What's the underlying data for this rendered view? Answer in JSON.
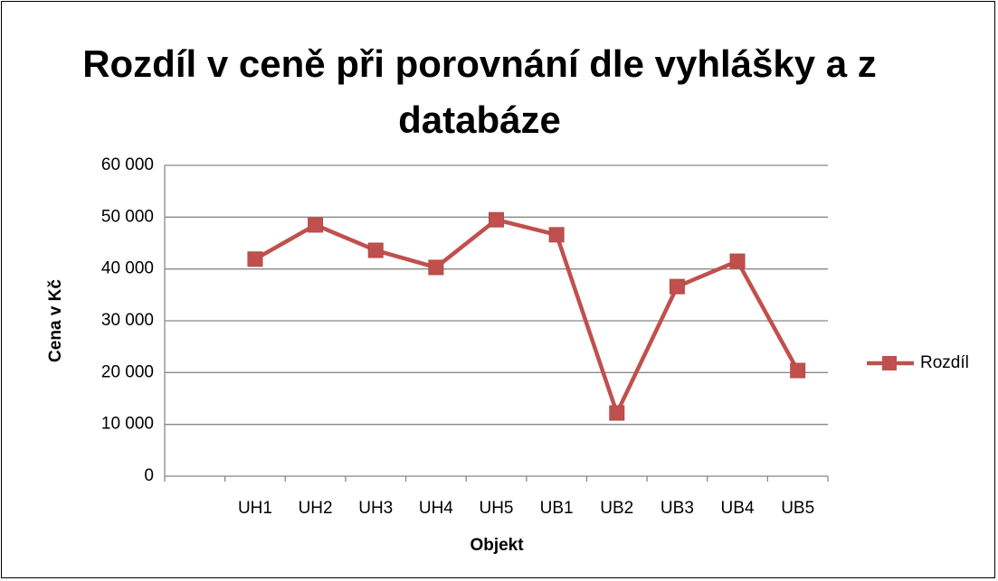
{
  "chart_data": {
    "type": "line",
    "title": "Rozdíl v ceně při porovnání dle vyhlášky a z databáze",
    "x_label": "Objekt",
    "y_label": "Cena v Kč",
    "categories": [
      null,
      "UH1",
      "UH2",
      "UH3",
      "UH4",
      "UH5",
      "UB1",
      "UB2",
      "UB3",
      "UB4",
      "UB5"
    ],
    "series": [
      {
        "name": "Rozdíl",
        "color": "#c0504d",
        "values": [
          null,
          41900,
          48500,
          43600,
          40300,
          49500,
          46600,
          12200,
          36600,
          41500,
          20400
        ]
      }
    ],
    "ylim": [
      0,
      60000
    ],
    "yticks": [
      0,
      {
        "value": 10000,
        "label": "10 000"
      },
      {
        "value": 20000,
        "label": "20 000"
      },
      {
        "value": 30000,
        "label": "30 000"
      },
      {
        "value": 40000,
        "label": "40 000"
      },
      {
        "value": 50000,
        "label": "50 000"
      },
      {
        "value": 60000,
        "label": "60 000"
      }
    ],
    "grid": true,
    "legend": "right"
  }
}
